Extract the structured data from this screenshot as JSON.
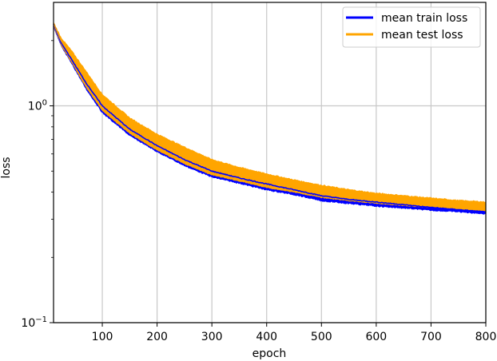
{
  "chart_data": {
    "type": "line",
    "title": "",
    "xlabel": "epoch",
    "ylabel": "loss",
    "xscale": "linear",
    "yscale": "log",
    "xlim": [
      11,
      800
    ],
    "ylim": [
      0.1,
      3.0
    ],
    "grid": true,
    "legend_position": "upper right",
    "x_ticks": [
      100,
      200,
      300,
      400,
      500,
      600,
      700,
      800
    ],
    "x_tick_labels": [
      "100",
      "200",
      "300",
      "400",
      "500",
      "600",
      "700",
      "800"
    ],
    "y_ticks": [
      0.1,
      1
    ],
    "y_tick_labels": [
      "10^-1",
      "10^0"
    ],
    "x": [
      11,
      25,
      45,
      70,
      100,
      150,
      200,
      250,
      300,
      350,
      400,
      450,
      500,
      550,
      600,
      650,
      700,
      750,
      800
    ],
    "series": [
      {
        "name": "mean train loss",
        "color": "#0000ff",
        "values": [
          2.38,
          1.95,
          1.62,
          1.28,
          1.0,
          0.78,
          0.655,
          0.565,
          0.5,
          0.465,
          0.436,
          0.41,
          0.385,
          0.37,
          0.36,
          0.35,
          0.34,
          0.332,
          0.324
        ],
        "band_low": [
          2.3,
          1.88,
          1.55,
          1.2,
          0.93,
          0.73,
          0.615,
          0.53,
          0.47,
          0.44,
          0.41,
          0.39,
          0.365,
          0.355,
          0.345,
          0.338,
          0.33,
          0.325,
          0.318
        ],
        "band_high": [
          2.42,
          2.0,
          1.67,
          1.32,
          1.03,
          0.8,
          0.67,
          0.58,
          0.51,
          0.475,
          0.445,
          0.42,
          0.395,
          0.38,
          0.37,
          0.36,
          0.35,
          0.342,
          0.334
        ]
      },
      {
        "name": "mean test loss",
        "color": "#ffa500",
        "values": [
          2.38,
          1.98,
          1.68,
          1.35,
          1.05,
          0.82,
          0.69,
          0.6,
          0.53,
          0.49,
          0.46,
          0.435,
          0.41,
          0.395,
          0.38,
          0.37,
          0.36,
          0.352,
          0.345
        ],
        "band_low": [
          2.32,
          1.9,
          1.57,
          1.22,
          0.95,
          0.745,
          0.625,
          0.54,
          0.48,
          0.45,
          0.42,
          0.4,
          0.378,
          0.365,
          0.355,
          0.347,
          0.34,
          0.333,
          0.327
        ],
        "band_high": [
          2.43,
          2.06,
          1.78,
          1.45,
          1.13,
          0.88,
          0.74,
          0.645,
          0.565,
          0.52,
          0.485,
          0.455,
          0.43,
          0.41,
          0.395,
          0.385,
          0.375,
          0.366,
          0.36
        ]
      }
    ]
  },
  "legend": {
    "items": [
      {
        "label": "mean train loss",
        "color": "#0000ff"
      },
      {
        "label": "mean test loss",
        "color": "#ffa500"
      }
    ]
  },
  "axes": {
    "xlabel": "epoch",
    "ylabel": "loss",
    "y_tick_base": "10",
    "y_tick_exponents": [
      "0",
      "−1"
    ]
  }
}
